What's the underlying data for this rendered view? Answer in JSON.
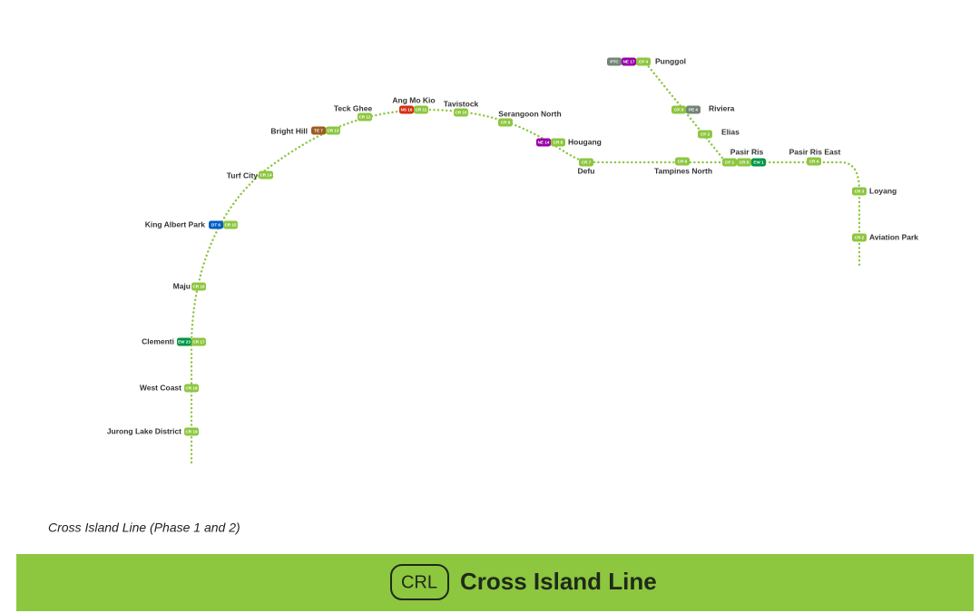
{
  "stations": [
    {
      "name": "Jurong Lake District",
      "codes": [
        "CR 19"
      ]
    },
    {
      "name": "West Coast",
      "codes": [
        "CR 18"
      ]
    },
    {
      "name": "Clementi",
      "codes": [
        "EW 23",
        "CR 17"
      ]
    },
    {
      "name": "Maju",
      "codes": [
        "CR 16"
      ]
    },
    {
      "name": "King Albert Park",
      "codes": [
        "DT 6",
        "CR 15"
      ]
    },
    {
      "name": "Turf City",
      "codes": [
        "CR 14"
      ]
    },
    {
      "name": "Bright Hill",
      "codes": [
        "TE 7",
        "CR 13"
      ]
    },
    {
      "name": "Teck Ghee",
      "codes": [
        "CR 12"
      ]
    },
    {
      "name": "Ang Mo Kio",
      "codes": [
        "NS 16",
        "CR 11"
      ]
    },
    {
      "name": "Tavistock",
      "codes": [
        "CR 10"
      ]
    },
    {
      "name": "Serangoon North",
      "codes": [
        "CR 9"
      ]
    },
    {
      "name": "Hougang",
      "codes": [
        "NE 14",
        "CR 8"
      ]
    },
    {
      "name": "Defu",
      "codes": [
        "CR 7"
      ]
    },
    {
      "name": "Tampines North",
      "codes": [
        "CR 6"
      ]
    },
    {
      "name": "Pasir Ris",
      "codes": [
        "CP 1",
        "CR 5",
        "EW 1"
      ]
    },
    {
      "name": "Pasir Ris East",
      "codes": [
        "CR 4"
      ]
    },
    {
      "name": "Loyang",
      "codes": [
        "CR 3"
      ]
    },
    {
      "name": "Aviation Park",
      "codes": [
        "CR 2"
      ]
    },
    {
      "name": "Elias",
      "codes": [
        "CP 2"
      ]
    },
    {
      "name": "Riviera",
      "codes": [
        "CP 3",
        "PE 4"
      ]
    },
    {
      "name": "Punggol",
      "codes": [
        "PTC",
        "NE 17",
        "CP 4"
      ]
    }
  ],
  "caption": "Cross Island Line (Phase 1 and 2)",
  "banner": {
    "code": "CRL",
    "name": "Cross Island Line"
  }
}
